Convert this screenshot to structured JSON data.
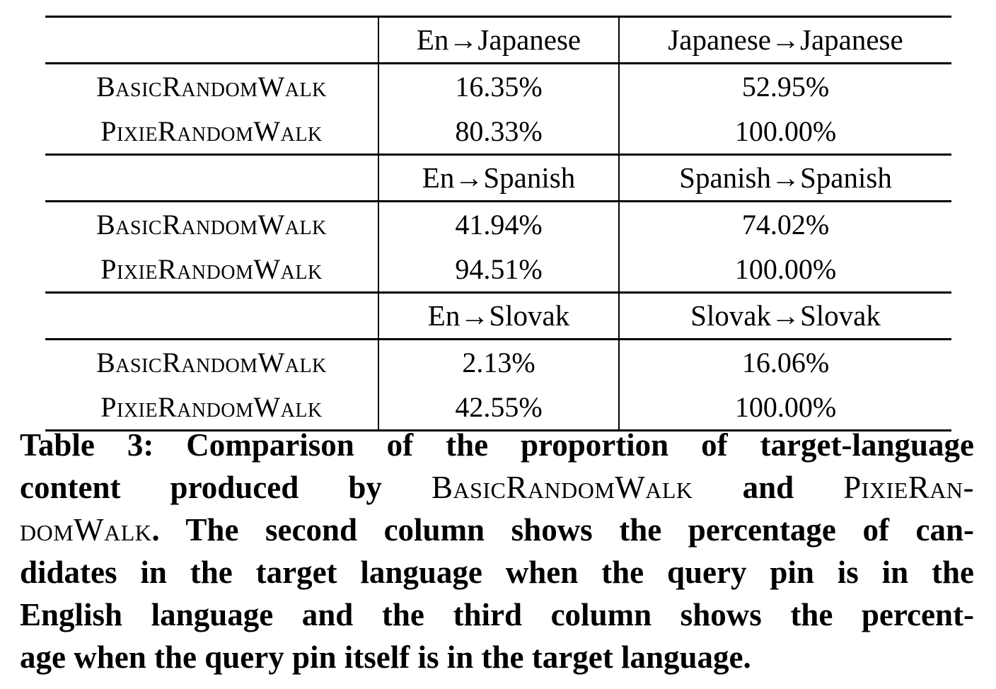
{
  "colors": {
    "text": "#000000",
    "background": "#ffffff",
    "rule": "#000000"
  },
  "table": {
    "sections": [
      {
        "col2_header": "En→Japanese",
        "col3_header": "Japanese→Japanese",
        "rows": [
          {
            "method": "BasicRandomWalk",
            "en_to_target": "16.35%",
            "target_to_target": "52.95%"
          },
          {
            "method": "PixieRandomWalk",
            "en_to_target": "80.33%",
            "target_to_target": "100.00%"
          }
        ]
      },
      {
        "col2_header": "En→Spanish",
        "col3_header": "Spanish→Spanish",
        "rows": [
          {
            "method": "BasicRandomWalk",
            "en_to_target": "41.94%",
            "target_to_target": "74.02%"
          },
          {
            "method": "PixieRandomWalk",
            "en_to_target": "94.51%",
            "target_to_target": "100.00%"
          }
        ]
      },
      {
        "col2_header": "En→Slovak",
        "col3_header": "Slovak→Slovak",
        "rows": [
          {
            "method": "BasicRandomWalk",
            "en_to_target": "2.13%",
            "target_to_target": "16.06%"
          },
          {
            "method": "PixieRandomWalk",
            "en_to_target": "42.55%",
            "target_to_target": "100.00%"
          }
        ]
      }
    ]
  },
  "caption": {
    "label": "Table 3",
    "lines": [
      {
        "seg0": "Table 3: Comparison of the proportion of target-language"
      },
      {
        "seg0": "content produced by ",
        "seg1": "BasicRandomWalk",
        "seg2": " and ",
        "seg3": "PixieRan-"
      },
      {
        "seg0": "domWalk",
        "seg1": ". The second column shows the percentage of can-"
      },
      {
        "seg0": "didates in the target language when the query pin is in the"
      },
      {
        "seg0": "English language and the third column shows the percent-"
      },
      {
        "seg0": "age when the query pin itself is in the target language."
      }
    ]
  }
}
